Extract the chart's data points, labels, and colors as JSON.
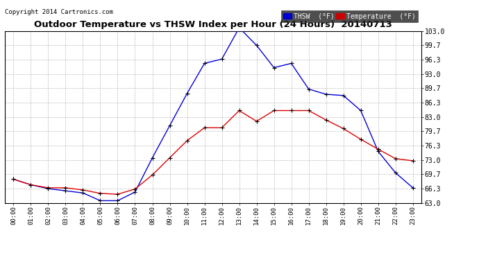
{
  "title": "Outdoor Temperature vs THSW Index per Hour (24 Hours)  20140713",
  "copyright": "Copyright 2014 Cartronics.com",
  "hours": [
    "00:00",
    "01:00",
    "02:00",
    "03:00",
    "04:00",
    "05:00",
    "06:00",
    "07:00",
    "08:00",
    "09:00",
    "10:00",
    "11:00",
    "12:00",
    "13:00",
    "14:00",
    "15:00",
    "16:00",
    "17:00",
    "18:00",
    "19:00",
    "20:00",
    "21:00",
    "22:00",
    "23:00"
  ],
  "thsw": [
    68.5,
    67.2,
    66.3,
    65.8,
    65.3,
    63.5,
    63.5,
    65.5,
    73.5,
    81.0,
    88.5,
    95.5,
    96.5,
    103.8,
    99.7,
    94.5,
    95.5,
    89.5,
    88.3,
    88.0,
    84.5,
    75.0,
    70.0,
    66.5
  ],
  "temperature": [
    68.5,
    67.2,
    66.5,
    66.5,
    66.0,
    65.2,
    65.0,
    66.2,
    69.5,
    73.5,
    77.5,
    80.5,
    80.5,
    84.5,
    82.0,
    84.5,
    84.5,
    84.5,
    82.3,
    80.3,
    77.8,
    75.5,
    73.3,
    72.8
  ],
  "thsw_color": "#0000dd",
  "temp_color": "#dd0000",
  "background_color": "#ffffff",
  "grid_color": "#bbbbbb",
  "ylim_min": 63.0,
  "ylim_max": 103.0,
  "ytick_values": [
    63.0,
    66.3,
    69.7,
    73.0,
    76.3,
    79.7,
    83.0,
    86.3,
    89.7,
    93.0,
    96.3,
    99.7,
    103.0
  ],
  "ytick_labels": [
    "63.0",
    "66.3",
    "69.7",
    "73.0",
    "76.3",
    "79.7",
    "83.0",
    "86.3",
    "89.7",
    "93.0",
    "96.3",
    "99.7",
    "103.0"
  ],
  "legend_thsw_bg": "#0000cc",
  "legend_temp_bg": "#cc0000"
}
